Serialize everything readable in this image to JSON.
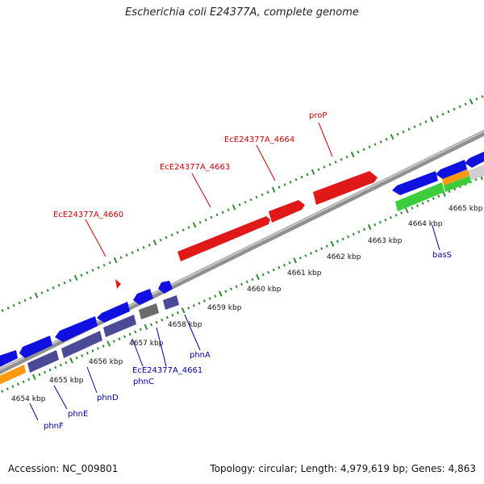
{
  "title": "Escherichia coli E24377A, complete genome",
  "footer": {
    "accession": "Accession: NC_009801",
    "summary": "Topology: circular; Length: 4,979,619 bp; Genes: 4,863"
  },
  "colors": {
    "backbone": "#8c8c8c",
    "ruler_dots": "#2f8a2f",
    "forward_gene": "#e01818",
    "cds_blue": "#1010e0",
    "cds_slate": "#4a4a96",
    "cds_gray": "#6a6a6a",
    "cds_orange": "#ff9a10",
    "cds_green": "#3ccc3c",
    "cds_lightgray": "#cfcfcf",
    "label_forward": "#cc0000",
    "label_reverse": "#0000aa"
  },
  "ticks": [
    "4654 kbp",
    "4655 kbp",
    "4656 kbp",
    "4657 kbp",
    "4658 kbp",
    "4659 kbp",
    "4660 kbp",
    "4661 kbp",
    "4662 kbp",
    "4663 kbp",
    "4664 kbp",
    "4665 kbp"
  ],
  "forward_labels": [
    {
      "text": "EcE24377A_4660",
      "line": [
        106,
        272,
        131,
        318
      ]
    },
    {
      "text": "EcE24377A_4663",
      "line": [
        238,
        215,
        261,
        257
      ]
    },
    {
      "text": "EcE24377A_4664",
      "line": [
        318,
        180,
        341,
        224
      ]
    },
    {
      "text": "proP",
      "line": [
        395,
        152,
        412,
        194
      ]
    }
  ],
  "reverse_labels": [
    {
      "text": "phnF",
      "line": [
        47,
        521,
        37,
        500
      ]
    },
    {
      "text": "phnE",
      "line": [
        83,
        507,
        67,
        478
      ]
    },
    {
      "text": "phnD",
      "line": [
        120,
        487,
        108,
        455
      ]
    },
    {
      "text": "EcE24377A_4661",
      "line": [
        177,
        454,
        164,
        420
      ]
    },
    {
      "text": "phnC",
      "line": [
        206,
        454,
        194,
        406
      ]
    },
    {
      "text": "phnA",
      "line": [
        248,
        434,
        229,
        390
      ]
    },
    {
      "text": "basS",
      "line": [
        545,
        310,
        536,
        280
      ]
    }
  ]
}
